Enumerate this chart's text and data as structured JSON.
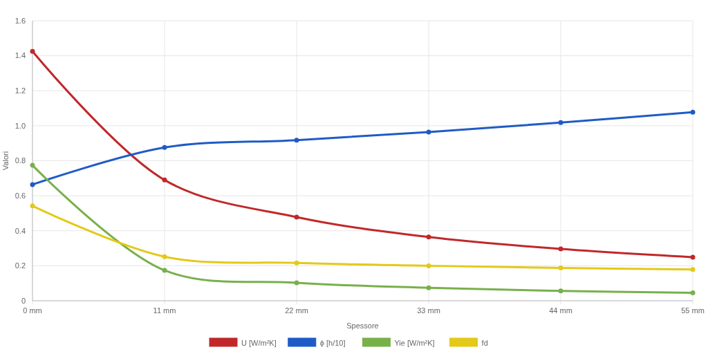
{
  "chart_data": {
    "type": "line",
    "xlabel": "Spessore",
    "ylabel": "Valori",
    "categories": [
      "0 mm",
      "11 mm",
      "22 mm",
      "33 mm",
      "44 mm",
      "55 mm"
    ],
    "series": [
      {
        "name": "U [W/m²K]",
        "color": "#c0282a",
        "values": [
          1.425,
          0.69,
          0.478,
          0.364,
          0.296,
          0.249
        ]
      },
      {
        "name": "ϕ [h/10]",
        "color": "#1f5bc6",
        "values": [
          0.664,
          0.876,
          0.918,
          0.964,
          1.018,
          1.078
        ]
      },
      {
        "name": "Yie [W/m²K]",
        "color": "#78b04a",
        "values": [
          0.774,
          0.174,
          0.103,
          0.074,
          0.056,
          0.045
        ]
      },
      {
        "name": "fd",
        "color": "#e3c918",
        "values": [
          0.542,
          0.252,
          0.216,
          0.2,
          0.188,
          0.179
        ]
      }
    ],
    "ylim": [
      0,
      1.6
    ],
    "yticks": [
      0,
      0.2,
      0.4,
      0.6,
      0.8,
      {
        "value": 1,
        "label": "1.0"
      },
      1.2,
      1.4,
      1.6
    ],
    "grid": true,
    "legend": "bottom",
    "marker": "circle",
    "line_style": "solid"
  }
}
